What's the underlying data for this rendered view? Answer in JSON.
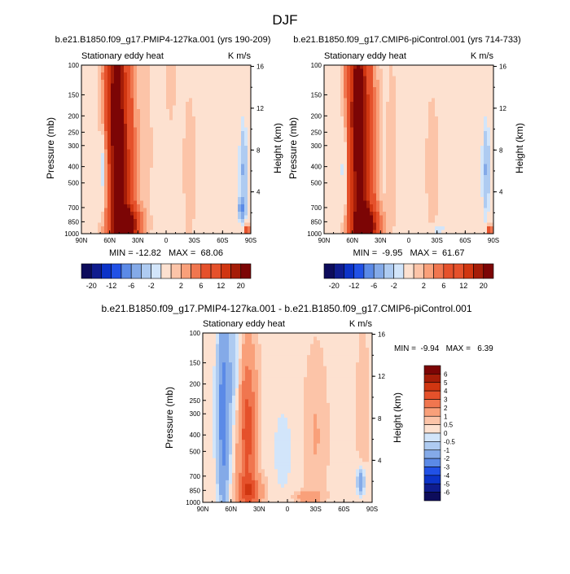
{
  "figure": {
    "title": "DJF"
  },
  "chart_data": [
    {
      "type": "heatmap",
      "id": "p1",
      "title": "b.e21.B1850.f09_g17.PMIP4-127ka.001 (yrs 190-209)",
      "left_string": "Stationary eddy heat",
      "right_string": "K m/s",
      "xlabel": "",
      "ylabel": "Pressure (mb)",
      "right_axis_label": "Height (km)",
      "x_ticks": [
        "90N",
        "60N",
        "30N",
        "0",
        "30S",
        "60S",
        "90S"
      ],
      "y_ticks": [
        "100",
        "150",
        "200",
        "250",
        "300",
        "400",
        "500",
        "700",
        "850",
        "1000"
      ],
      "right_ticks": [
        "16",
        "12",
        "8",
        "4"
      ],
      "stats": "MIN = -12.82   MAX =  68.06",
      "levels": [
        -20,
        -16,
        -12,
        -8,
        -6,
        -4,
        -2,
        -1,
        1,
        2,
        4,
        6,
        8,
        12,
        16,
        20
      ],
      "colorbar_labels": [
        "-20",
        "-12",
        "-6",
        "-2",
        "2",
        "6",
        "12",
        "20"
      ],
      "features": [
        {
          "lat": 48,
          "p": 500,
          "value": 17,
          "slat": 9,
          "sp": 700
        },
        {
          "lat": 55,
          "p": 120,
          "value": 14,
          "slat": 7,
          "sp": 150
        },
        {
          "lat": 42,
          "p": 900,
          "value": 22,
          "slat": 9,
          "sp": 150
        },
        {
          "lat": 66,
          "p": 400,
          "value": -6,
          "slat": 3,
          "sp": 180
        },
        {
          "lat": -82,
          "p": 420,
          "value": -4.5,
          "slat": 3,
          "sp": 200
        },
        {
          "lat": -80,
          "p": 720,
          "value": -5,
          "slat": 3,
          "sp": 80
        },
        {
          "lat": -86,
          "p": 960,
          "value": 10,
          "slat": 2,
          "sp": 50
        },
        {
          "lat": -25,
          "p": 400,
          "value": 1.5,
          "slat": 5,
          "sp": 300
        },
        {
          "lat": -5,
          "p": 120,
          "value": 1.3,
          "slat": 4,
          "sp": 60
        },
        {
          "lat": 20,
          "p": 300,
          "value": 1.2,
          "slat": 4,
          "sp": 300
        }
      ]
    },
    {
      "type": "heatmap",
      "id": "p2",
      "title": "b.e21.B1850.f09_g17.CMIP6-piControl.001 (yrs 714-733)",
      "left_string": "Stationary eddy heat",
      "right_string": "K m/s",
      "xlabel": "",
      "ylabel": "Pressure (mb)",
      "right_axis_label": "Height (km)",
      "x_ticks": [
        "90N",
        "60N",
        "30N",
        "0",
        "30S",
        "60S",
        "90S"
      ],
      "y_ticks": [
        "100",
        "150",
        "200",
        "250",
        "300",
        "400",
        "500",
        "700",
        "850",
        "1000"
      ],
      "right_ticks": [
        "16",
        "12",
        "8",
        "4"
      ],
      "stats": "MIN =  -9.95   MAX =  61.67",
      "levels": [
        -20,
        -16,
        -12,
        -8,
        -6,
        -4,
        -2,
        -1,
        1,
        2,
        4,
        6,
        8,
        12,
        16,
        20
      ],
      "colorbar_labels": [
        "-20",
        "-12",
        "-6",
        "-2",
        "2",
        "6",
        "12",
        "20"
      ],
      "features": [
        {
          "lat": 50,
          "p": 500,
          "value": 16,
          "slat": 9,
          "sp": 700
        },
        {
          "lat": 55,
          "p": 120,
          "value": 14,
          "slat": 7,
          "sp": 150
        },
        {
          "lat": 45,
          "p": 900,
          "value": 18,
          "slat": 9,
          "sp": 150
        },
        {
          "lat": 68,
          "p": 400,
          "value": -5,
          "slat": 3,
          "sp": 200
        },
        {
          "lat": -82,
          "p": 420,
          "value": -4.5,
          "slat": 3,
          "sp": 200
        },
        {
          "lat": -30,
          "p": 940,
          "value": -2.5,
          "slat": 7,
          "sp": 50
        },
        {
          "lat": -86,
          "p": 960,
          "value": 10,
          "slat": 2,
          "sp": 50
        },
        {
          "lat": -25,
          "p": 400,
          "value": 1.5,
          "slat": 5,
          "sp": 300
        },
        {
          "lat": 18,
          "p": 300,
          "value": 1.2,
          "slat": 4,
          "sp": 300
        }
      ]
    },
    {
      "type": "heatmap",
      "id": "p3",
      "title": "b.e21.B1850.f09_g17.PMIP4-127ka.001 - b.e21.B1850.f09_g17.CMIP6-piControl.001",
      "left_string": "Stationary eddy heat",
      "right_string": "K m/s",
      "xlabel": "",
      "ylabel": "Pressure (mb)",
      "right_axis_label": "Height (km)",
      "x_ticks": [
        "90N",
        "60N",
        "30N",
        "0",
        "30S",
        "60S",
        "90S"
      ],
      "y_ticks": [
        "100",
        "150",
        "200",
        "250",
        "300",
        "400",
        "500",
        "700",
        "850",
        "1000"
      ],
      "right_ticks": [
        "16",
        "12",
        "8",
        "4"
      ],
      "stats": "MIN =  -9.94   MAX =   6.39",
      "levels": [
        -6,
        -5,
        -4,
        -3,
        -2,
        -1,
        -0.5,
        0,
        0.5,
        1,
        2,
        3,
        4,
        5,
        6
      ],
      "colorbar_labels": [
        "6",
        "5",
        "4",
        "3",
        "2",
        "1",
        "0.5",
        "0",
        "-0.5",
        "-1",
        "-2",
        "-3",
        "-4",
        "-5",
        "-6"
      ],
      "features": [
        {
          "lat": 68,
          "p": 300,
          "value": -3,
          "slat": 5,
          "sp": 300
        },
        {
          "lat": 43,
          "p": 380,
          "value": 3.2,
          "slat": 7,
          "sp": 300
        },
        {
          "lat": 40,
          "p": 860,
          "value": 2.2,
          "slat": 10,
          "sp": 120
        },
        {
          "lat": 55,
          "p": 160,
          "value": -1.2,
          "slat": 5,
          "sp": 100
        },
        {
          "lat": -30,
          "p": 400,
          "value": 0.7,
          "slat": 8,
          "sp": 300
        },
        {
          "lat": -20,
          "p": 930,
          "value": 1.3,
          "slat": 10,
          "sp": 50
        },
        {
          "lat": -80,
          "p": 280,
          "value": 0.6,
          "slat": 4,
          "sp": 200
        },
        {
          "lat": -78,
          "p": 750,
          "value": -2.2,
          "slat": 3,
          "sp": 100
        },
        {
          "lat": 5,
          "p": 500,
          "value": -0.5,
          "slat": 10,
          "sp": 300
        }
      ]
    }
  ],
  "colors": {
    "blue": [
      "#0d0c5b",
      "#0f1c8e",
      "#0c33c8",
      "#2151e6",
      "#3f6fea",
      "#5b8ae7",
      "#84aae8",
      "#aecbf1",
      "#d2e5fa"
    ],
    "red": [
      "#fde1d0",
      "#fcc4a8",
      "#f9a07a",
      "#f0764f",
      "#e5512b",
      "#d03611",
      "#a51d08",
      "#7c0505"
    ]
  }
}
